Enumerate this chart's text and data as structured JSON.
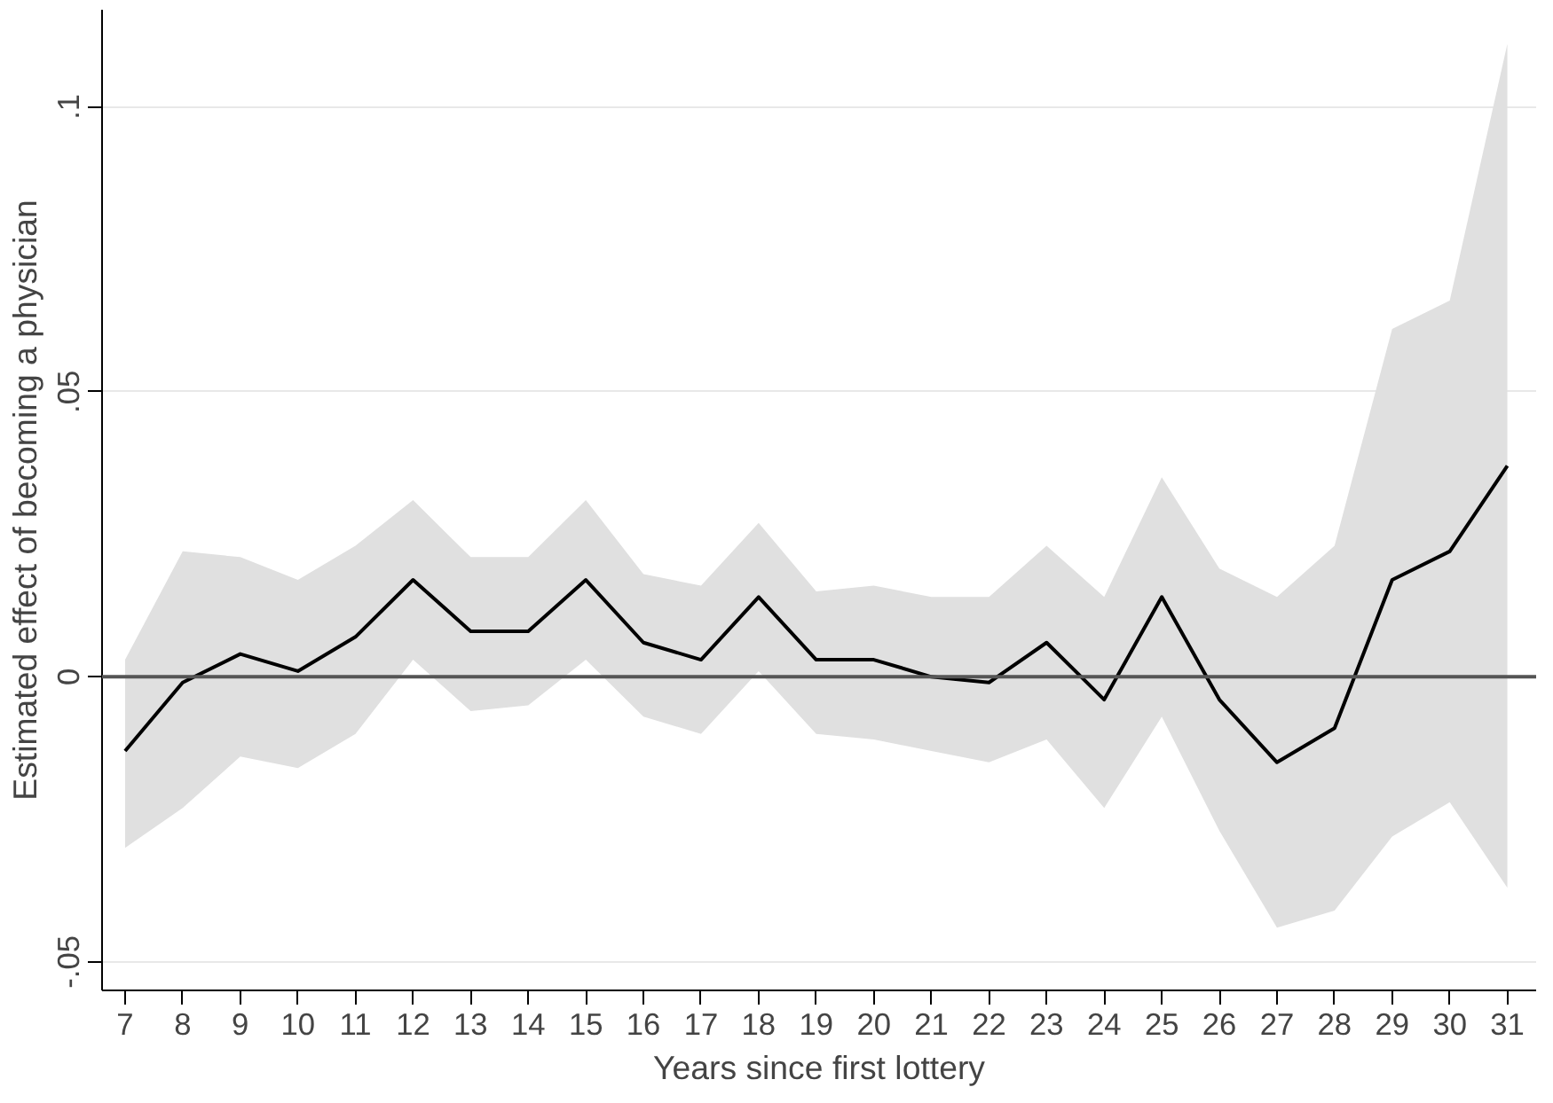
{
  "chart_data": {
    "type": "line",
    "xlabel": "Years since first lottery",
    "ylabel": "Estimated effect of becoming a physician",
    "x": [
      7,
      8,
      9,
      10,
      11,
      12,
      13,
      14,
      15,
      16,
      17,
      18,
      19,
      20,
      21,
      22,
      23,
      24,
      25,
      26,
      27,
      28,
      29,
      30,
      31
    ],
    "series": [
      {
        "color": "#000000",
        "values": [
          -0.013,
          -0.001,
          0.004,
          0.001,
          0.007,
          0.017,
          0.008,
          0.008,
          0.017,
          0.006,
          0.003,
          0.014,
          0.003,
          0.003,
          0.0,
          -0.001,
          0.006,
          -0.004,
          0.014,
          -0.004,
          -0.015,
          -0.009,
          0.017,
          0.022,
          0.037
        ],
        "upper": [
          0.003,
          0.022,
          0.021,
          0.017,
          0.023,
          0.031,
          0.021,
          0.021,
          0.031,
          0.018,
          0.016,
          0.027,
          0.015,
          0.016,
          0.014,
          0.014,
          0.023,
          0.014,
          0.035,
          0.019,
          0.014,
          0.023,
          0.061,
          0.066,
          0.111
        ],
        "lower": [
          -0.03,
          -0.023,
          -0.014,
          -0.016,
          -0.01,
          0.003,
          -0.006,
          -0.005,
          0.003,
          -0.007,
          -0.01,
          0.001,
          -0.01,
          -0.011,
          -0.013,
          -0.015,
          -0.011,
          -0.023,
          -0.007,
          -0.027,
          -0.044,
          -0.041,
          -0.028,
          -0.022,
          -0.037
        ]
      }
    ],
    "xlim": [
      6.6,
      31.5
    ],
    "ylim": [
      -0.055,
      0.117
    ],
    "xticks": [
      7,
      8,
      9,
      10,
      11,
      12,
      13,
      14,
      15,
      16,
      17,
      18,
      19,
      20,
      21,
      22,
      23,
      24,
      25,
      26,
      27,
      28,
      29,
      30,
      31
    ],
    "yticks": [
      {
        "value": -0.05,
        "label": "-.05"
      },
      {
        "value": 0,
        "label": "0"
      },
      {
        "value": 0.05,
        "label": ".05"
      },
      {
        "value": 0.1,
        "label": ".1"
      }
    ],
    "ref_lines": [
      {
        "axis": "y",
        "value": 0,
        "color": "#555555"
      }
    ],
    "grid": "y",
    "line_style": "solid"
  }
}
